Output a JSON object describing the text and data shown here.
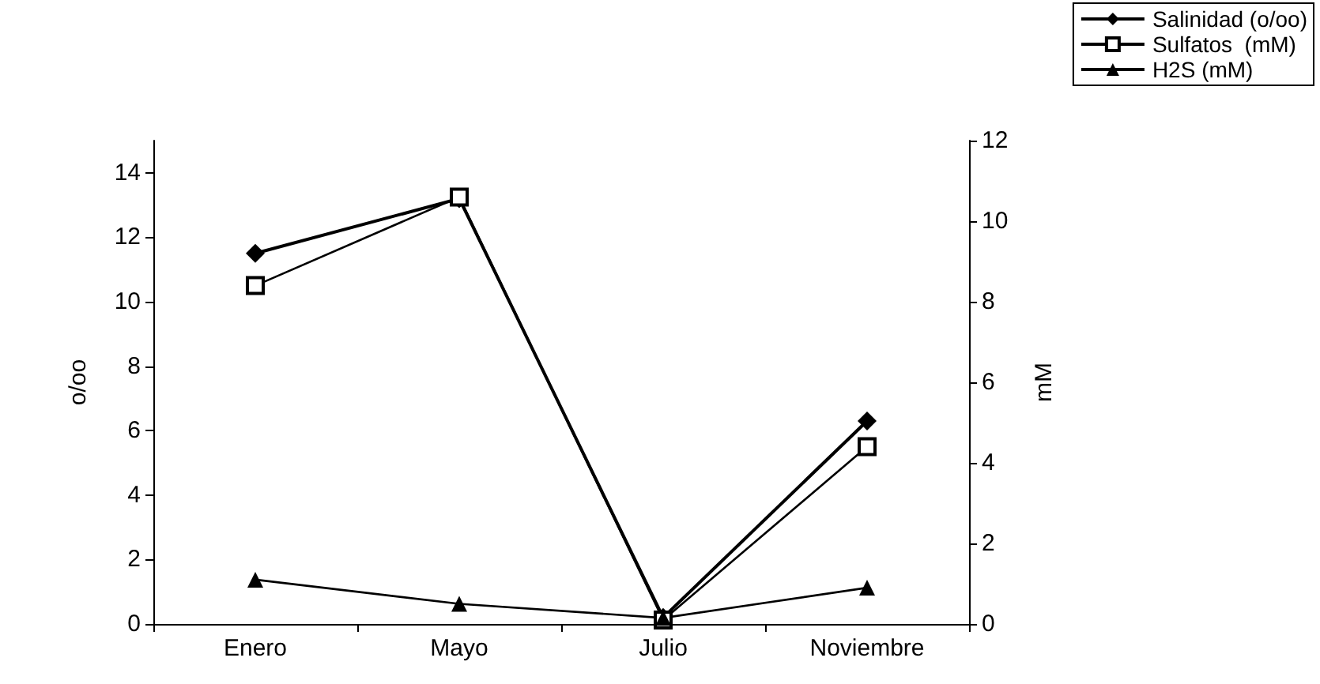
{
  "chart_data": {
    "type": "line",
    "ylabel": "o/oo",
    "y2label": "mM",
    "categories": [
      "Enero",
      "Mayo",
      "Julio",
      "Noviembre"
    ],
    "series": [
      {
        "name": "Salinidad (o/oo)",
        "color": "#000000",
        "marker": "diamond",
        "values": [
          11.5,
          13.2,
          0.2,
          6.3
        ]
      },
      {
        "name": "Sulfatos  (mM)",
        "color": "#000000",
        "marker": "square",
        "axis": "y2",
        "values": [
          8.4,
          10.6,
          0.1,
          4.4
        ]
      },
      {
        "name": "H2S (mM)",
        "color": "#000000",
        "marker": "triangle",
        "axis": "y2",
        "values": [
          1.1,
          0.5,
          0.15,
          0.9
        ]
      }
    ],
    "ylim": [
      0,
      15
    ],
    "yticks": [
      0,
      2,
      4,
      6,
      8,
      10,
      12,
      14
    ],
    "y2lim": [
      0,
      12
    ],
    "y2ticks": [
      0,
      2,
      4,
      6,
      8,
      10,
      12
    ],
    "grid": false,
    "legend": "top right"
  }
}
